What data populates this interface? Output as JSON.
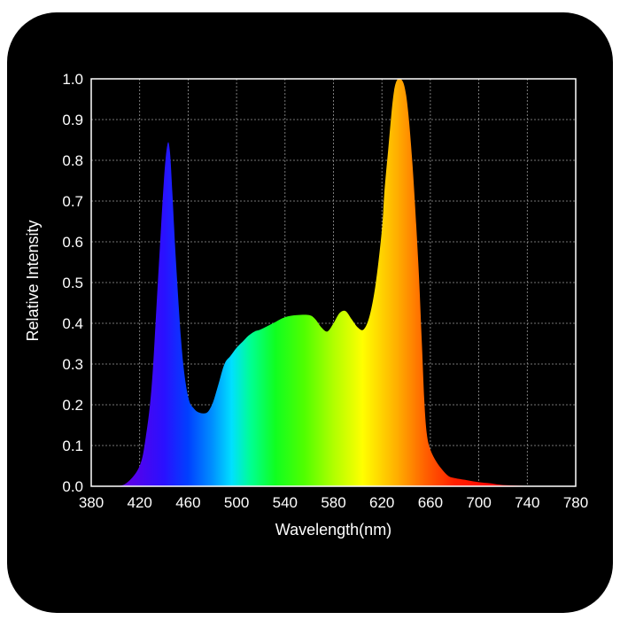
{
  "chart_data": {
    "type": "area",
    "title": "",
    "xlabel": "Wavelength(nm)",
    "ylabel": "Relative Intensity",
    "xlim": [
      380,
      780
    ],
    "ylim": [
      0,
      1.0
    ],
    "x_ticks": [
      "380",
      "420",
      "460",
      "500",
      "540",
      "580",
      "620",
      "660",
      "700",
      "740",
      "780"
    ],
    "y_ticks": [
      "0.0",
      "0.1",
      "0.2",
      "0.3",
      "0.4",
      "0.5",
      "0.6",
      "0.7",
      "0.8",
      "0.9",
      "1.0"
    ],
    "grid": true,
    "fill": "visible-spectrum gradient",
    "series": [
      {
        "x": [
          380,
          400,
          410,
          420,
          425,
          430,
          435,
          440,
          443,
          445,
          447,
          450,
          455,
          460,
          465,
          470,
          475,
          478,
          481,
          485,
          490,
          495,
          500,
          505,
          510,
          515,
          520,
          530,
          540,
          550,
          560,
          565,
          570,
          575,
          580,
          585,
          590,
          595,
          600,
          605,
          610,
          615,
          620,
          622,
          625,
          630,
          635,
          640,
          645,
          650,
          653,
          655,
          657,
          660,
          665,
          670,
          675,
          680,
          690,
          700,
          710,
          720,
          740,
          760,
          780
        ],
        "y": [
          0.0,
          0.0,
          0.01,
          0.05,
          0.12,
          0.25,
          0.5,
          0.75,
          0.84,
          0.82,
          0.72,
          0.55,
          0.33,
          0.22,
          0.19,
          0.18,
          0.18,
          0.19,
          0.21,
          0.25,
          0.3,
          0.32,
          0.34,
          0.355,
          0.37,
          0.38,
          0.385,
          0.4,
          0.415,
          0.42,
          0.42,
          0.41,
          0.39,
          0.38,
          0.4,
          0.425,
          0.43,
          0.41,
          0.39,
          0.385,
          0.42,
          0.5,
          0.63,
          0.72,
          0.82,
          0.97,
          1.0,
          0.96,
          0.8,
          0.55,
          0.35,
          0.21,
          0.13,
          0.09,
          0.06,
          0.04,
          0.025,
          0.02,
          0.015,
          0.01,
          0.007,
          0.003,
          0.001,
          0.0,
          0.0
        ]
      }
    ]
  }
}
